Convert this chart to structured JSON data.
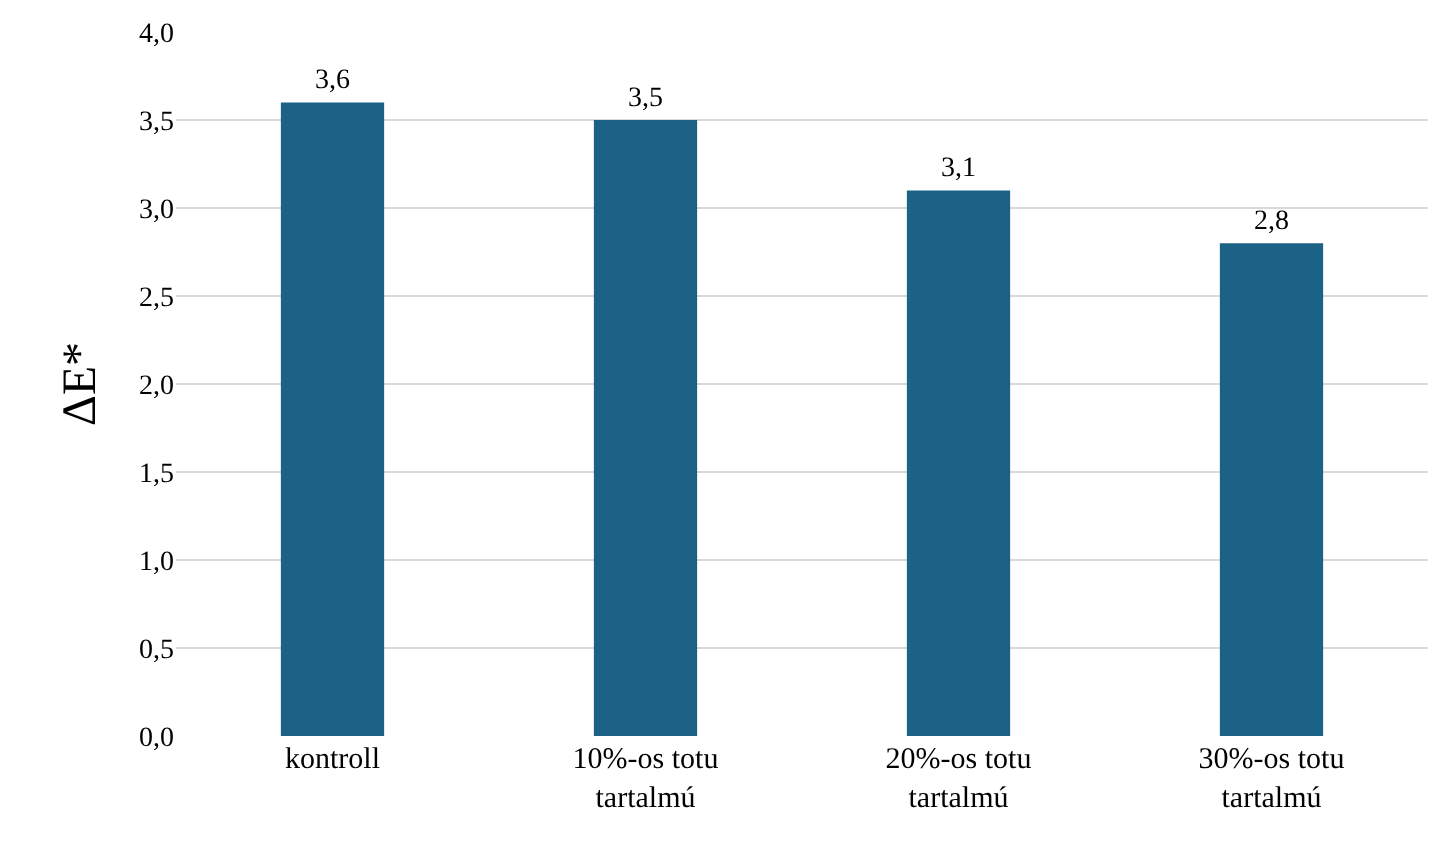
{
  "chart_data": {
    "type": "bar",
    "ylabel": "ΔE*",
    "categories": [
      "kontroll",
      "10%-os totu\ntartalmú",
      "20%-os totu\ntartalmú",
      "30%-os totu\ntartalmú"
    ],
    "series": [
      {
        "color": "#1b6286",
        "values": [
          3.6,
          3.5,
          3.1,
          2.8
        ],
        "value_labels": [
          "3,6",
          "3,5",
          "3,1",
          "2,8"
        ]
      }
    ],
    "ylim": [
      0,
      4
    ],
    "yticks": [
      {
        "value": 0,
        "label": "0,0"
      },
      {
        "value": 0.5,
        "label": "0,5"
      },
      {
        "value": 1,
        "label": "1,0"
      },
      {
        "value": 1.5,
        "label": "1,5"
      },
      {
        "value": 2,
        "label": "2,0"
      },
      {
        "value": 2.5,
        "label": "2,5"
      },
      {
        "value": 3,
        "label": "3,0"
      },
      {
        "value": 3.5,
        "label": "3,5"
      },
      {
        "value": 4,
        "label": "4,0"
      }
    ],
    "grid": "y"
  }
}
